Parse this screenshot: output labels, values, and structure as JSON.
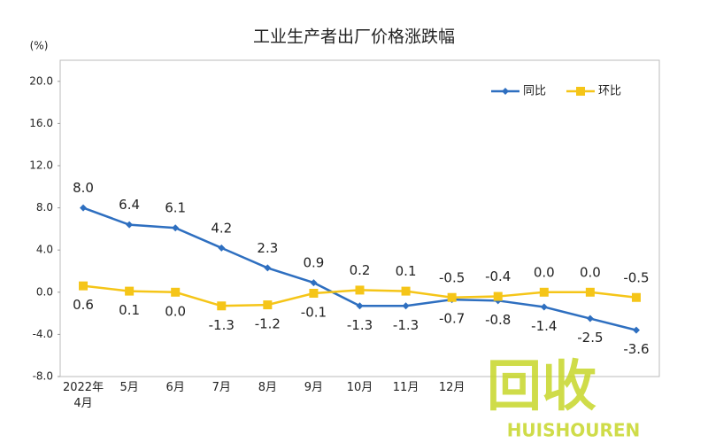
{
  "chart_data": {
    "type": "line",
    "title": "工业生产者出厂价格涨跌幅",
    "ylabel": "(%)",
    "categories": [
      "2022年\n4月",
      "5月",
      "6月",
      "7月",
      "8月",
      "9月",
      "10月",
      "11月",
      "12月",
      null,
      null,
      null,
      null
    ],
    "series": [
      {
        "name": "同比",
        "color": "#2e6fc0",
        "marker": "diamond",
        "values": [
          8.0,
          6.4,
          6.1,
          4.2,
          2.3,
          0.9,
          -1.3,
          -1.3,
          -0.7,
          -0.8,
          -1.4,
          -2.5,
          -3.6
        ],
        "value_labels": [
          "8.0",
          "6.4",
          "6.1",
          "4.2",
          "2.3",
          "0.9",
          "-1.3",
          "-1.3",
          "-0.7",
          "-0.8",
          "-1.4",
          "-2.5",
          "-3.6"
        ]
      },
      {
        "name": "环比",
        "color": "#f5c518",
        "marker": "square",
        "values": [
          0.6,
          0.1,
          0.0,
          -1.3,
          -1.2,
          -0.1,
          0.2,
          0.1,
          -0.5,
          -0.4,
          0.0,
          0.0,
          -0.5
        ],
        "value_labels": [
          "0.6",
          "0.1",
          "0.0",
          "-1.3",
          "-1.2",
          "-0.1",
          "0.2",
          "0.1",
          "-0.5",
          "-0.4",
          "0.0",
          "0.0",
          "-0.5"
        ]
      }
    ],
    "ylim": [
      -8,
      22
    ],
    "yticks": [
      {
        "value": -8,
        "label": "-8.0"
      },
      {
        "value": -4,
        "label": "-4.0"
      },
      {
        "value": 0,
        "label": "0.0"
      },
      {
        "value": 4,
        "label": "4.0"
      },
      {
        "value": 8,
        "label": "8.0"
      },
      {
        "value": 12,
        "label": "12.0"
      },
      {
        "value": 16,
        "label": "16.0"
      },
      {
        "value": 20,
        "label": "20.0"
      }
    ],
    "legend": "upper right",
    "watermark": {
      "text": "回收",
      "subtext": "HUISHOUREN"
    }
  }
}
